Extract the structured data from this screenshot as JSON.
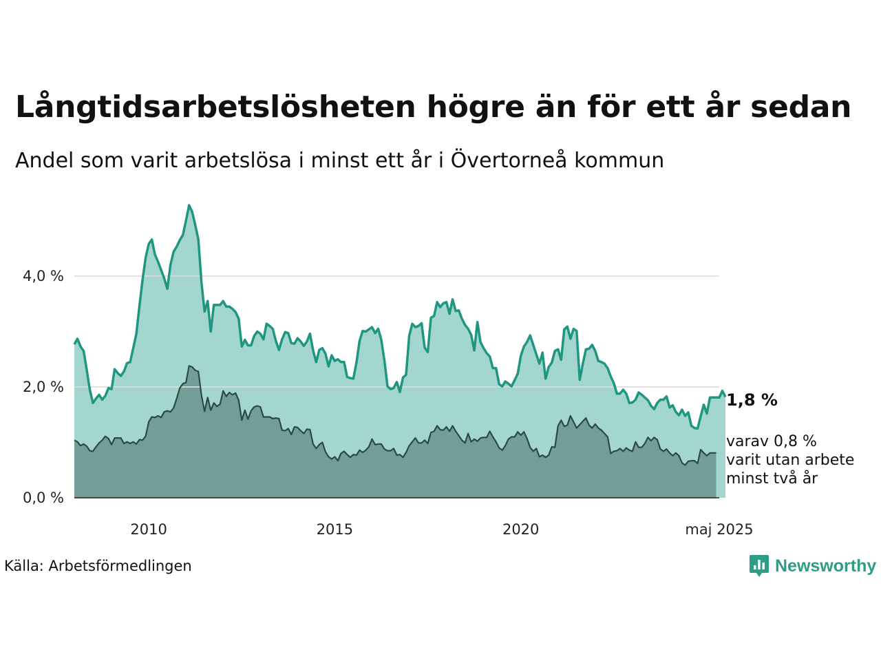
{
  "title": "Långtidsarbetslösheten högre än för ett år sedan",
  "subtitle": "Andel som varit arbetslösa i minst ett år i Övertorneå kommun",
  "source": "Källa: Arbetsförmedlingen",
  "brand": "Newsworthy",
  "colors": {
    "series1_line": "#1f9680",
    "series1_fill": "#a3d6cf",
    "series2_line": "#2b4a43",
    "series2_fill": "#729e97",
    "grid": "#dddddd",
    "brand": "#2e9c86"
  },
  "chart_data": {
    "type": "area",
    "x_start": "2008-01",
    "x_end": "2025-05",
    "ylim": [
      0,
      5.4
    ],
    "y_ticks": [
      {
        "value": 0,
        "label": "0,0 %"
      },
      {
        "value": 2,
        "label": "2,0 %"
      },
      {
        "value": 4,
        "label": "4,0 %"
      }
    ],
    "x_ticks": [
      {
        "value": "2010",
        "label": "2010"
      },
      {
        "value": "2015",
        "label": "2015"
      },
      {
        "value": "2020",
        "label": "2020"
      },
      {
        "value": "2025-05",
        "label": "maj 2025"
      }
    ],
    "grid": true,
    "series": [
      {
        "values": [
          2.77,
          2.87,
          2.73,
          2.65,
          2.31,
          1.95,
          1.71,
          1.79,
          1.86,
          1.77,
          1.84,
          1.98,
          1.96,
          2.32,
          2.25,
          2.2,
          2.28,
          2.43,
          2.45,
          2.7,
          2.96,
          3.46,
          3.93,
          4.33,
          4.58,
          4.66,
          4.39,
          4.26,
          4.11,
          3.96,
          3.77,
          4.2,
          4.44,
          4.53,
          4.65,
          4.74,
          5.0,
          5.28,
          5.16,
          4.92,
          4.66,
          3.89,
          3.36,
          3.55,
          3.0,
          3.48,
          3.48,
          3.48,
          3.55,
          3.45,
          3.45,
          3.41,
          3.35,
          3.23,
          2.73,
          2.85,
          2.75,
          2.75,
          2.92,
          3.0,
          2.96,
          2.86,
          3.14,
          3.1,
          3.05,
          2.83,
          2.67,
          2.86,
          2.99,
          2.97,
          2.79,
          2.78,
          2.88,
          2.82,
          2.74,
          2.82,
          2.96,
          2.66,
          2.45,
          2.67,
          2.7,
          2.6,
          2.37,
          2.57,
          2.47,
          2.5,
          2.45,
          2.45,
          2.18,
          2.16,
          2.15,
          2.44,
          2.83,
          3.01,
          3.0,
          3.04,
          3.08,
          2.97,
          3.05,
          2.85,
          2.48,
          2.01,
          1.96,
          1.98,
          2.09,
          1.91,
          2.17,
          2.22,
          2.92,
          3.14,
          3.08,
          3.1,
          3.15,
          2.71,
          2.63,
          3.25,
          3.28,
          3.53,
          3.44,
          3.51,
          3.53,
          3.32,
          3.58,
          3.37,
          3.38,
          3.23,
          3.12,
          3.05,
          2.94,
          2.66,
          3.17,
          2.81,
          2.7,
          2.61,
          2.55,
          2.34,
          2.34,
          2.05,
          2.01,
          2.1,
          2.06,
          2.01,
          2.12,
          2.24,
          2.56,
          2.73,
          2.81,
          2.93,
          2.76,
          2.59,
          2.42,
          2.62,
          2.15,
          2.36,
          2.44,
          2.65,
          2.68,
          2.49,
          3.04,
          3.09,
          2.87,
          3.05,
          3.01,
          2.13,
          2.42,
          2.68,
          2.69,
          2.76,
          2.65,
          2.47,
          2.45,
          2.42,
          2.34,
          2.19,
          2.07,
          1.88,
          1.88,
          1.95,
          1.88,
          1.71,
          1.72,
          1.77,
          1.9,
          1.86,
          1.81,
          1.76,
          1.66,
          1.6,
          1.71,
          1.77,
          1.77,
          1.83,
          1.63,
          1.67,
          1.55,
          1.49,
          1.59,
          1.48,
          1.54,
          1.3,
          1.26,
          1.25,
          1.47,
          1.68,
          1.52,
          1.81,
          1.81,
          1.81,
          1.81,
          1.93,
          1.82
        ]
      },
      {
        "values": [
          1.04,
          1.01,
          0.94,
          0.97,
          0.93,
          0.85,
          0.84,
          0.92,
          0.99,
          1.04,
          1.11,
          1.07,
          0.96,
          1.08,
          1.08,
          1.08,
          0.98,
          1.01,
          0.98,
          1.01,
          0.97,
          1.05,
          1.04,
          1.11,
          1.37,
          1.46,
          1.45,
          1.48,
          1.45,
          1.55,
          1.57,
          1.55,
          1.62,
          1.79,
          1.98,
          2.06,
          2.08,
          2.38,
          2.36,
          2.3,
          2.28,
          1.85,
          1.56,
          1.81,
          1.58,
          1.71,
          1.65,
          1.69,
          1.93,
          1.83,
          1.9,
          1.86,
          1.89,
          1.76,
          1.4,
          1.58,
          1.42,
          1.57,
          1.64,
          1.66,
          1.64,
          1.46,
          1.46,
          1.46,
          1.43,
          1.44,
          1.43,
          1.22,
          1.21,
          1.25,
          1.14,
          1.28,
          1.27,
          1.21,
          1.16,
          1.24,
          1.23,
          0.97,
          0.89,
          0.96,
          1.0,
          0.83,
          0.74,
          0.7,
          0.74,
          0.67,
          0.8,
          0.84,
          0.78,
          0.73,
          0.78,
          0.77,
          0.86,
          0.82,
          0.86,
          0.92,
          1.06,
          0.96,
          0.97,
          0.97,
          0.88,
          0.85,
          0.85,
          0.89,
          0.77,
          0.78,
          0.73,
          0.82,
          0.94,
          1.01,
          1.08,
          0.99,
          0.99,
          1.04,
          0.98,
          1.18,
          1.2,
          1.3,
          1.23,
          1.22,
          1.28,
          1.2,
          1.3,
          1.2,
          1.12,
          1.04,
          0.99,
          1.16,
          1.01,
          1.06,
          1.02,
          1.08,
          1.09,
          1.09,
          1.2,
          1.1,
          1.01,
          0.9,
          0.86,
          0.94,
          1.06,
          1.1,
          1.1,
          1.19,
          1.13,
          1.19,
          1.07,
          0.91,
          0.84,
          0.89,
          0.74,
          0.77,
          0.73,
          0.77,
          0.92,
          0.91,
          1.3,
          1.4,
          1.29,
          1.31,
          1.48,
          1.37,
          1.26,
          1.32,
          1.38,
          1.44,
          1.31,
          1.26,
          1.33,
          1.26,
          1.22,
          1.16,
          1.1,
          0.8,
          0.84,
          0.85,
          0.89,
          0.84,
          0.9,
          0.86,
          0.84,
          1.01,
          0.91,
          0.91,
          0.98,
          1.09,
          1.03,
          1.09,
          1.05,
          0.88,
          0.84,
          0.88,
          0.81,
          0.76,
          0.81,
          0.76,
          0.63,
          0.59,
          0.66,
          0.67,
          0.67,
          0.62,
          0.87,
          0.81,
          0.76,
          0.81,
          0.81,
          0.81
        ]
      }
    ],
    "annotations": {
      "series1_end_label": "1,8 %",
      "series2_end_label_lines": [
        "varav 0,8 %",
        "varit utan arbete",
        "minst två år"
      ]
    }
  }
}
